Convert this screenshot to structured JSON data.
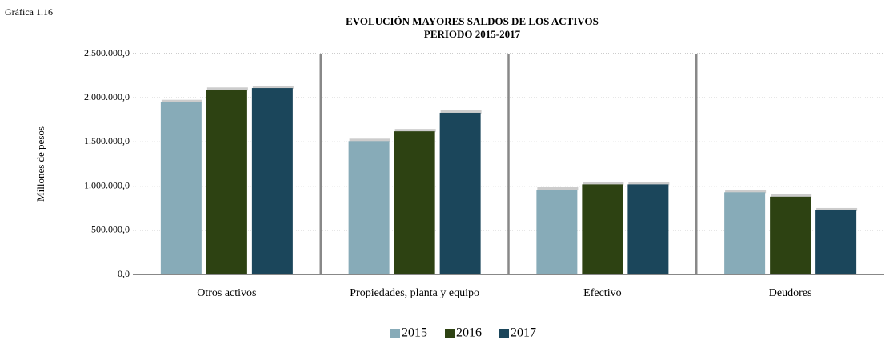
{
  "chart_data": {
    "type": "bar",
    "label": "Gráfica 1.16",
    "title": "EVOLUCIÓN  MAYORES SALDOS DE LOS ACTIVOS",
    "subtitle": "PERIODO 2015-2017",
    "y_label": "Millones  de pesos",
    "categories": [
      "Otros activos",
      "Propiedades, planta y equipo",
      "Efectivo",
      "Deudores"
    ],
    "series": [
      {
        "name": "2015",
        "color": "#87abb8",
        "values": [
          1950000,
          1510000,
          960000,
          930000
        ]
      },
      {
        "name": "2016",
        "color": "#2d4212",
        "values": [
          2090000,
          1620000,
          1020000,
          880000
        ]
      },
      {
        "name": "2017",
        "color": "#1b465b",
        "values": [
          2110000,
          1830000,
          1020000,
          725000
        ]
      }
    ],
    "ylim": [
      0,
      2500000
    ],
    "yticks": [
      {
        "value": 0,
        "label": "0,0"
      },
      {
        "value": 500000,
        "label": "500.000,0"
      },
      {
        "value": 1000000,
        "label": "1.000.000,0"
      },
      {
        "value": 1500000,
        "label": "1.500.000,0"
      },
      {
        "value": 2000000,
        "label": "2.000.000,0"
      },
      {
        "value": 2500000,
        "label": "2.500.000,0"
      }
    ],
    "grid": true,
    "legend": "bottom"
  }
}
